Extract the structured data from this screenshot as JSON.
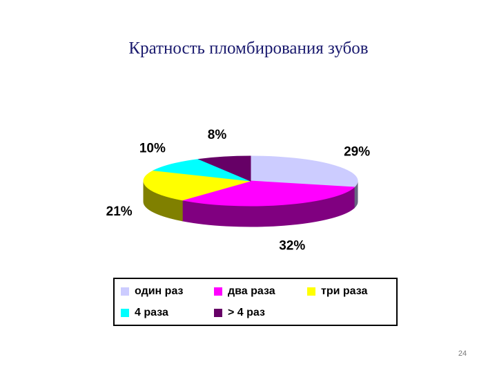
{
  "chart_data": {
    "type": "pie",
    "title": "Кратность пломбирования зубов",
    "categories": [
      "один раз",
      "два раза",
      "три раза",
      "4 раза",
      "> 4 раз"
    ],
    "values": [
      29,
      32,
      21,
      10,
      8
    ],
    "value_labels": [
      "29%",
      "32%",
      "21%",
      "10%",
      "8%"
    ],
    "colors": [
      "#ccccff",
      "#ff00ff",
      "#ffff00",
      "#00ffff",
      "#660066"
    ]
  },
  "page_number": "24"
}
